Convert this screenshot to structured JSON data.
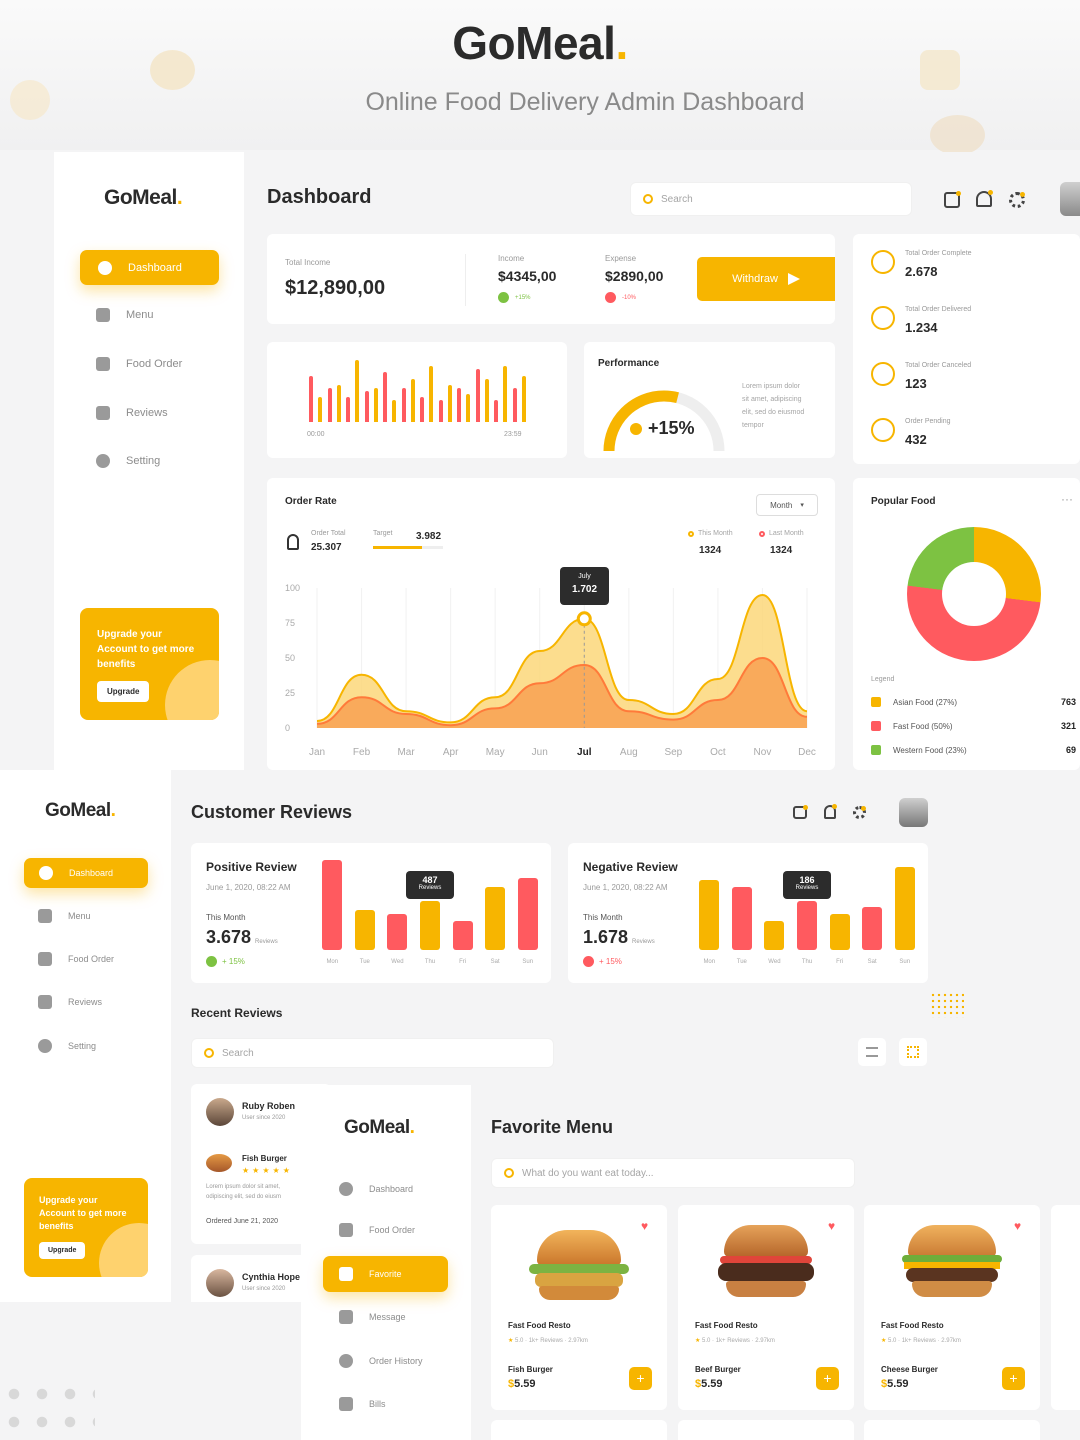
{
  "hero": {
    "brand": "GoMeal",
    "brand_dot": ".",
    "subtitle": "Online Food Delivery Admin Dashboard"
  },
  "colors": {
    "accent": "#f7b500",
    "red": "#ff5a5f",
    "green": "#7dc242",
    "bg": "#f4f4f5"
  },
  "dash": {
    "brand": "GoMeal",
    "brand_dot": ".",
    "title": "Dashboard",
    "search_placeholder": "Search",
    "nav": [
      {
        "label": "Dashboard",
        "icon": "dashboard-icon",
        "active": true
      },
      {
        "label": "Menu",
        "icon": "menu-icon"
      },
      {
        "label": "Food Order",
        "icon": "food-order-icon"
      },
      {
        "label": "Reviews",
        "icon": "reviews-icon"
      },
      {
        "label": "Setting",
        "icon": "setting-icon"
      }
    ],
    "upgrade": {
      "line1": "Upgrade your",
      "line2": "Account to get more",
      "line3": "benefits",
      "button": "Upgrade"
    },
    "income": {
      "total_label": "Total Income",
      "total_value": "$12,890,00",
      "income_label": "Income",
      "income_value": "$4345,00",
      "income_change": "+15%",
      "expense_label": "Expense",
      "expense_value": "$2890,00",
      "expense_change": "-10%",
      "withdraw": "Withdraw"
    },
    "hourly": {
      "start": "00:00",
      "end": "23:59",
      "values": [
        0.75,
        0.4,
        0.55,
        0.6,
        0.4,
        1.0,
        0.5,
        0.55,
        0.8,
        0.35,
        0.55,
        0.7,
        0.4,
        0.9,
        0.35,
        0.6,
        0.55,
        0.45,
        0.85,
        0.7,
        0.35,
        0.9,
        0.55,
        0.75
      ]
    },
    "performance": {
      "title": "Performance",
      "value": "+15%",
      "text": [
        "Lorem ipsum dolor",
        "sit amet, adipiscing",
        "elit, sed do eiusmod",
        "tempor"
      ],
      "progress": 0.58
    },
    "orders": [
      {
        "label": "Total Order Complete",
        "value": "2.678"
      },
      {
        "label": "Total Order Delivered",
        "value": "1.234"
      },
      {
        "label": "Total Order Canceled",
        "value": "123"
      },
      {
        "label": "Order Pending",
        "value": "432"
      }
    ],
    "order_rate": {
      "title": "Order Rate",
      "period": "Month",
      "order_total_label": "Order Total",
      "order_total": "25.307",
      "target_label": "Target",
      "target": "3.982",
      "this_month_label": "This Month",
      "this_month": "1324",
      "last_month_label": "Last Month",
      "last_month": "1324",
      "tooltip_month": "July",
      "tooltip_value": "1.702"
    },
    "popular": {
      "title": "Popular Food",
      "legend_title": "Legend",
      "items": [
        {
          "label": "Asian Food (27%)",
          "value": "763",
          "color": "#f7b500",
          "pct": 27
        },
        {
          "label": "Fast Food (50%)",
          "value": "321",
          "color": "#ff5a5f",
          "pct": 50
        },
        {
          "label": "Western Food (23%)",
          "value": "69",
          "color": "#7dc242",
          "pct": 23
        }
      ]
    }
  },
  "chart_data": {
    "type": "area",
    "categories": [
      "Jan",
      "Feb",
      "Mar",
      "Apr",
      "May",
      "Jun",
      "Jul",
      "Aug",
      "Sep",
      "Oct",
      "Nov",
      "Dec"
    ],
    "ylim": [
      0,
      100
    ],
    "yticks": [
      "100",
      "75",
      "50",
      "25",
      "0"
    ],
    "series": [
      {
        "color": "#f7b500",
        "values": [
          5,
          38,
          12,
          4,
          22,
          55,
          78,
          20,
          10,
          35,
          95,
          12
        ]
      },
      {
        "color": "#ff7a3a",
        "values": [
          3,
          22,
          10,
          2,
          14,
          32,
          45,
          12,
          6,
          20,
          50,
          8
        ]
      }
    ]
  },
  "reviews": {
    "brand": "GoMeal",
    "brand_dot": ".",
    "title": "Customer Reviews",
    "nav": [
      {
        "label": "Dashboard",
        "active": true,
        "icon": "dashboard-icon"
      },
      {
        "label": "Menu",
        "icon": "menu-icon"
      },
      {
        "label": "Food Order",
        "icon": "food-order-icon"
      },
      {
        "label": "Reviews",
        "icon": "reviews-icon"
      },
      {
        "label": "Setting",
        "icon": "setting-icon"
      }
    ],
    "upgrade": {
      "line1": "Upgrade your",
      "line2": "Account to get more",
      "line3": "benefits",
      "button": "Upgrade"
    },
    "positive": {
      "title": "Positive Review",
      "date": "June 1, 2020, 08:22 AM",
      "month_label": "This Month",
      "value": "3.678",
      "unit": "Reviews",
      "change": "+ 15%",
      "tooltip_value": "487",
      "tooltip_unit": "Reviews",
      "days": [
        "Mon",
        "Tue",
        "Wed",
        "Thu",
        "Fri",
        "Sat",
        "Sun"
      ],
      "bars": [
        {
          "h": 1.0,
          "c": "#ff5a5f"
        },
        {
          "h": 0.45,
          "c": "#f7b500"
        },
        {
          "h": 0.4,
          "c": "#ff5a5f"
        },
        {
          "h": 0.55,
          "c": "#f7b500"
        },
        {
          "h": 0.32,
          "c": "#ff5a5f"
        },
        {
          "h": 0.7,
          "c": "#f7b500"
        },
        {
          "h": 0.8,
          "c": "#ff5a5f"
        }
      ]
    },
    "negative": {
      "title": "Negative Review",
      "date": "June 1, 2020, 08:22 AM",
      "month_label": "This Month",
      "value": "1.678",
      "unit": "Reviews",
      "change": "+ 15%",
      "tooltip_value": "186",
      "tooltip_unit": "Reviews",
      "days": [
        "Mon",
        "Tue",
        "Wed",
        "Thu",
        "Fri",
        "Sat",
        "Sun"
      ],
      "bars": [
        {
          "h": 0.78,
          "c": "#f7b500"
        },
        {
          "h": 0.7,
          "c": "#ff5a5f"
        },
        {
          "h": 0.32,
          "c": "#f7b500"
        },
        {
          "h": 0.55,
          "c": "#ff5a5f"
        },
        {
          "h": 0.4,
          "c": "#f7b500"
        },
        {
          "h": 0.48,
          "c": "#ff5a5f"
        },
        {
          "h": 0.92,
          "c": "#f7b500"
        }
      ]
    },
    "recent_title": "Recent Reviews",
    "search_placeholder": "Search",
    "list": [
      {
        "name": "Ruby Roben",
        "since": "User since 2020",
        "dish": "Fish Burger",
        "text": [
          "Lorem ipsum dolor sit amet,",
          "odipiscing elit, sed do eiusm"
        ],
        "ordered": "Ordered June 21, 2020"
      },
      {
        "name": "Cynthia Hope",
        "since": "User since 2020"
      }
    ]
  },
  "favorite": {
    "brand": "GoMeal",
    "brand_dot": ".",
    "title": "Favorite Menu",
    "search_placeholder": "What do you want eat today...",
    "nav": [
      {
        "label": "Dashboard",
        "icon": "dashboard-icon"
      },
      {
        "label": "Food Order",
        "icon": "food-order-icon"
      },
      {
        "label": "Favorite",
        "icon": "favorite-icon",
        "active": true
      },
      {
        "label": "Message",
        "icon": "message-icon"
      },
      {
        "label": "Order History",
        "icon": "order-history-icon"
      },
      {
        "label": "Bills",
        "icon": "bills-icon"
      }
    ],
    "cards": [
      {
        "resto": "Fast Food Resto",
        "meta": "5.0 · 1k+ Reviews · 2.97km",
        "name": "Fish Burger",
        "price": "5.59",
        "currency": "$"
      },
      {
        "resto": "Fast Food Resto",
        "meta": "5.0 · 1k+ Reviews · 2.97km",
        "name": "Beef Burger",
        "price": "5.59",
        "currency": "$"
      },
      {
        "resto": "Fast Food Resto",
        "meta": "5.0 · 1k+ Reviews · 2.97km",
        "name": "Cheese Burger",
        "price": "5.59",
        "currency": "$"
      }
    ]
  }
}
